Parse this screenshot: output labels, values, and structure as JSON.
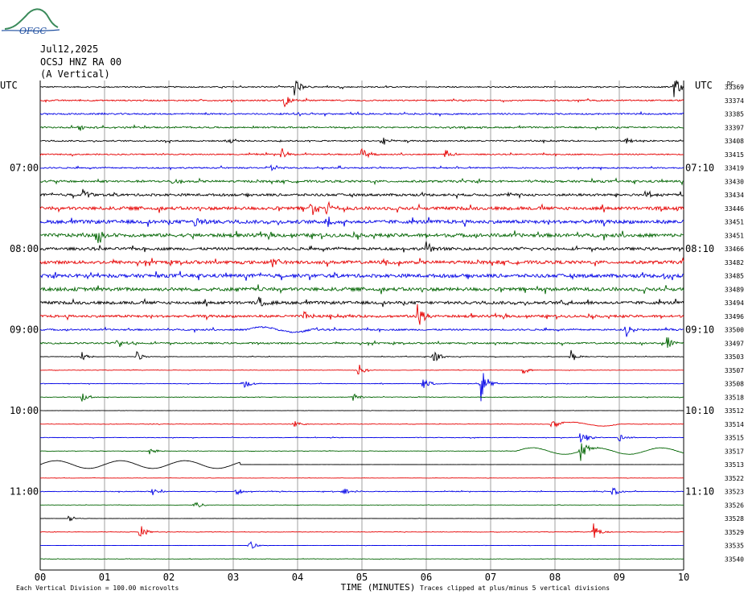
{
  "header": {
    "logo_text": "OFGC",
    "date": "Jul12,2025",
    "station": "OCSJ HNZ RA 00",
    "component": "(A Vertical)"
  },
  "colors": {
    "black": "#000000",
    "red": "#e60000",
    "blue": "#0000e6",
    "green": "#006400",
    "grid": "#888888"
  },
  "chart_data": {
    "type": "helicorder",
    "left_tz_label": "UTC",
    "right_tz_label": "UTC",
    "xlabel": "TIME (MINUTES)",
    "x_ticks": [
      "00",
      "01",
      "02",
      "03",
      "04",
      "05",
      "06",
      "07",
      "08",
      "09",
      "10"
    ],
    "xlim": [
      0,
      10
    ],
    "left_time_labels": [
      "07:00",
      "08:00",
      "09:00",
      "10:00",
      "11:00"
    ],
    "right_time_labels": [
      "07:10",
      "08:10",
      "09:10",
      "10:10",
      "11:10"
    ],
    "label_every_n_traces": 6,
    "first_label_trace": 6,
    "dc_label": "DC",
    "trace_colors": [
      "black",
      "red",
      "blue",
      "green"
    ],
    "dc_offsets": [
      33369,
      33374,
      33385,
      33397,
      33408,
      33415,
      33419,
      33430,
      33434,
      33446,
      33451,
      33451,
      33466,
      33482,
      33485,
      33489,
      33494,
      33496,
      33500,
      33497,
      33503,
      33507,
      33508,
      33518,
      33512,
      33514,
      33515,
      33517,
      33513,
      33522,
      33523,
      33526,
      33528,
      33529,
      33535,
      33540
    ],
    "noise_levels": [
      0.45,
      0.5,
      0.55,
      0.55,
      0.5,
      0.45,
      0.5,
      0.8,
      0.9,
      1.2,
      1.3,
      1.3,
      1.0,
      1.2,
      1.3,
      1.3,
      1.1,
      0.9,
      0.6,
      0.6,
      0.2,
      0.15,
      0.2,
      0.2,
      0.1,
      0.15,
      0.2,
      0.15,
      0.05,
      0.1,
      0.25,
      0.1,
      0.1,
      0.15,
      0.1,
      0.15
    ],
    "events": [
      {
        "trace": 0,
        "minute": 3.95,
        "amp": 8
      },
      {
        "trace": 0,
        "minute": 9.85,
        "amp": 10
      },
      {
        "trace": 1,
        "minute": 3.8,
        "amp": 5
      },
      {
        "trace": 3,
        "minute": 0.6,
        "amp": 4
      },
      {
        "trace": 4,
        "minute": 2.9,
        "amp": 4
      },
      {
        "trace": 4,
        "minute": 5.3,
        "amp": 6
      },
      {
        "trace": 4,
        "minute": 9.1,
        "amp": 4
      },
      {
        "trace": 5,
        "minute": 3.75,
        "amp": 6
      },
      {
        "trace": 5,
        "minute": 5.0,
        "amp": 7
      },
      {
        "trace": 5,
        "minute": 6.3,
        "amp": 5
      },
      {
        "trace": 6,
        "minute": 3.6,
        "amp": 4
      },
      {
        "trace": 7,
        "minute": 2.05,
        "amp": 5
      },
      {
        "trace": 8,
        "minute": 0.65,
        "amp": 6
      },
      {
        "trace": 8,
        "minute": 9.4,
        "amp": 5
      },
      {
        "trace": 9,
        "minute": 4.2,
        "amp": 7
      },
      {
        "trace": 9,
        "minute": 4.45,
        "amp": 6
      },
      {
        "trace": 10,
        "minute": 4.45,
        "amp": 6
      },
      {
        "trace": 10,
        "minute": 2.4,
        "amp": 5
      },
      {
        "trace": 11,
        "minute": 0.9,
        "amp": 7
      },
      {
        "trace": 12,
        "minute": 6.0,
        "amp": 6
      },
      {
        "trace": 13,
        "minute": 5.35,
        "amp": 5
      },
      {
        "trace": 13,
        "minute": 3.6,
        "amp": 4
      },
      {
        "trace": 14,
        "minute": 0.7,
        "amp": 4
      },
      {
        "trace": 14,
        "minute": 9.7,
        "amp": 4
      },
      {
        "trace": 16,
        "minute": 3.4,
        "amp": 4
      },
      {
        "trace": 16,
        "minute": 8.1,
        "amp": 4
      },
      {
        "trace": 17,
        "minute": 5.85,
        "amp": 12
      },
      {
        "trace": 17,
        "minute": 4.1,
        "amp": 5
      },
      {
        "trace": 18,
        "minute": 9.1,
        "amp": 5
      },
      {
        "trace": 19,
        "minute": 1.2,
        "amp": 4
      },
      {
        "trace": 19,
        "minute": 9.75,
        "amp": 5
      },
      {
        "trace": 20,
        "minute": 0.65,
        "amp": 4
      },
      {
        "trace": 20,
        "minute": 1.5,
        "amp": 4
      },
      {
        "trace": 20,
        "minute": 6.1,
        "amp": 6
      },
      {
        "trace": 20,
        "minute": 8.25,
        "amp": 5
      },
      {
        "trace": 21,
        "minute": 4.95,
        "amp": 6
      },
      {
        "trace": 21,
        "minute": 7.5,
        "amp": 4
      },
      {
        "trace": 22,
        "minute": 3.15,
        "amp": 5
      },
      {
        "trace": 22,
        "minute": 6.85,
        "amp": 14
      },
      {
        "trace": 22,
        "minute": 5.95,
        "amp": 5
      },
      {
        "trace": 23,
        "minute": 0.65,
        "amp": 5
      },
      {
        "trace": 23,
        "minute": 4.85,
        "amp": 4
      },
      {
        "trace": 25,
        "minute": 3.95,
        "amp": 4
      },
      {
        "trace": 25,
        "minute": 7.95,
        "amp": 5
      },
      {
        "trace": 26,
        "minute": 8.4,
        "amp": 7
      },
      {
        "trace": 26,
        "minute": 9.0,
        "amp": 3
      },
      {
        "trace": 27,
        "minute": 1.7,
        "amp": 3
      },
      {
        "trace": 27,
        "minute": 8.4,
        "amp": 10
      },
      {
        "trace": 30,
        "minute": 1.75,
        "amp": 4
      },
      {
        "trace": 30,
        "minute": 3.05,
        "amp": 3
      },
      {
        "trace": 30,
        "minute": 4.7,
        "amp": 4
      },
      {
        "trace": 30,
        "minute": 8.9,
        "amp": 4
      },
      {
        "trace": 31,
        "minute": 2.4,
        "amp": 4
      },
      {
        "trace": 32,
        "minute": 0.45,
        "amp": 3
      },
      {
        "trace": 33,
        "minute": 1.55,
        "amp": 6
      },
      {
        "trace": 33,
        "minute": 8.6,
        "amp": 7
      },
      {
        "trace": 34,
        "minute": 3.25,
        "amp": 4
      }
    ],
    "long_period": [
      {
        "trace": 18,
        "from": 3.2,
        "to": 4.3,
        "amp": 2
      },
      {
        "trace": 25,
        "from": 8.0,
        "to": 9.0,
        "amp": 1.5
      },
      {
        "trace": 27,
        "from": 7.4,
        "to": 10.0,
        "amp": 2.5
      },
      {
        "trace": 28,
        "from": 0.0,
        "to": 3.1,
        "amp": 3
      }
    ],
    "footer_left": "Each Vertical Division =  100.00 microvolts",
    "footer_right": "Traces clipped at plus/minus 5 vertical divisions"
  }
}
